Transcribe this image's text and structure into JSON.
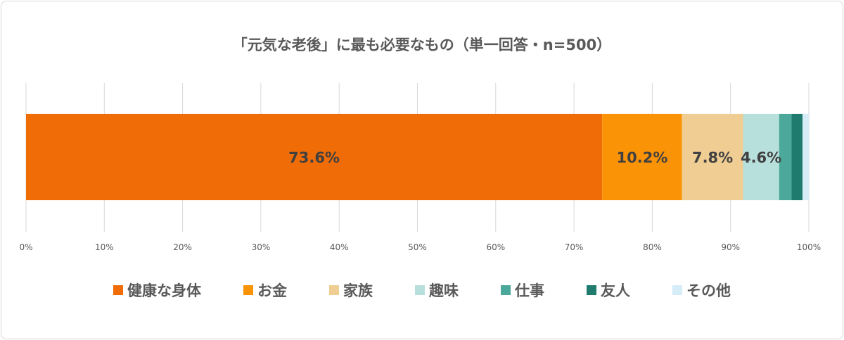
{
  "chart_data": {
    "type": "bar",
    "orientation": "horizontal-stacked-100",
    "title": "「元気な老後」に最も必要なもの（単一回答・n=500）",
    "series": [
      {
        "name": "健康な身体",
        "value": 73.6,
        "label": "73.6%",
        "color": "#ef6c07"
      },
      {
        "name": "お金",
        "value": 10.2,
        "label": "10.2%",
        "color": "#fb9306"
      },
      {
        "name": "家族",
        "value": 7.8,
        "label": "7.8%",
        "color": "#f0cd93"
      },
      {
        "name": "趣味",
        "value": 4.6,
        "label": "4.6%",
        "color": "#b7e0dc"
      },
      {
        "name": "仕事",
        "value": 1.6,
        "label": "",
        "color": "#4ca89b"
      },
      {
        "name": "友人",
        "value": 1.4,
        "label": "",
        "color": "#1e7b6e"
      },
      {
        "name": "その他",
        "value": 0.8,
        "label": "",
        "color": "#d6ecf7"
      }
    ],
    "xlim": [
      0,
      100
    ],
    "xticks": [
      "0%",
      "10%",
      "20%",
      "30%",
      "40%",
      "50%",
      "60%",
      "70%",
      "80%",
      "90%",
      "100%"
    ],
    "grid": true,
    "legend_position": "bottom"
  }
}
